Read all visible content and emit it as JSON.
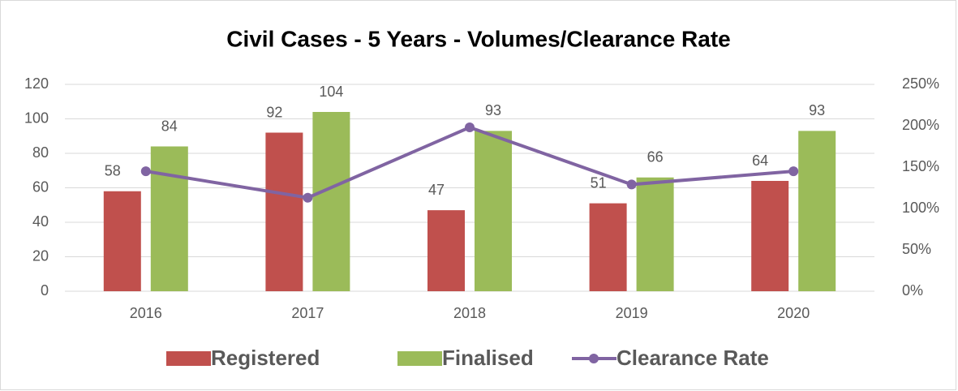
{
  "chart_data": {
    "type": "bar",
    "title": "Civil Cases - 5 Years - Volumes/Clearance Rate",
    "categories": [
      "2016",
      "2017",
      "2018",
      "2019",
      "2020"
    ],
    "series": [
      {
        "name": "Registered",
        "color": "#c0504d",
        "values": [
          58,
          92,
          47,
          51,
          64
        ]
      },
      {
        "name": "Finalised",
        "color": "#9bbb59",
        "values": [
          84,
          104,
          93,
          66,
          93
        ]
      },
      {
        "name": "Clearance Rate",
        "color": "#8064a2",
        "type": "line",
        "axis": "y2",
        "values": [
          145,
          113,
          198,
          129,
          145
        ]
      }
    ],
    "ylim": [
      0,
      120
    ],
    "yticks": [
      0,
      20,
      40,
      60,
      80,
      100,
      120
    ],
    "y2lim": [
      0,
      250
    ],
    "y2ticks": [
      {
        "value": 0,
        "label": "0%"
      },
      {
        "value": 50,
        "label": "50%"
      },
      {
        "value": 100,
        "label": "100%"
      },
      {
        "value": 150,
        "label": "150%"
      },
      {
        "value": 200,
        "label": "200%"
      },
      {
        "value": 250,
        "label": "250%"
      }
    ],
    "grid": true,
    "legend": "bottom"
  }
}
